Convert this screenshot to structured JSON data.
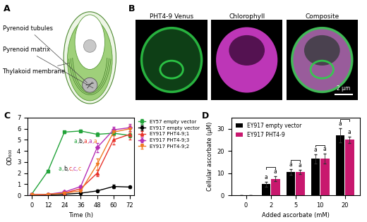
{
  "panel_labels": [
    "A",
    "B",
    "C",
    "D"
  ],
  "diagram": {
    "labels": [
      "Pyrenoid tubules",
      "Pyrenoid matrix",
      "Thylakoid membrane"
    ]
  },
  "images": {
    "titles": [
      "PHT4-9 Venus",
      "Chlorophyll",
      "Composite"
    ],
    "scale_bar": "2 µm"
  },
  "chart_data": [
    {
      "type": "line",
      "x": [
        0,
        12,
        24,
        36,
        48,
        60,
        72
      ],
      "xlim": [
        -3,
        75
      ],
      "xticks": [
        0,
        12,
        24,
        36,
        48,
        60,
        72
      ],
      "ylim": [
        0,
        7
      ],
      "yticks": [
        0,
        1,
        2,
        3,
        4,
        5,
        6,
        7
      ],
      "xlabel": "Time (h)",
      "ylabel": "OD₆₀₀",
      "legend": "upper left",
      "series": [
        {
          "name": "EY57 empty vector",
          "color": "#22a33a",
          "marker": "s",
          "values": [
            0.1,
            2.2,
            5.7,
            5.8,
            5.5,
            5.6,
            5.4
          ],
          "errors": [
            0.02,
            0.1,
            0.1,
            0.1,
            0.15,
            0.15,
            0.2
          ]
        },
        {
          "name": "EY917 empty vector",
          "color": "#000000",
          "marker": "o",
          "values": [
            0.05,
            0.05,
            0.1,
            0.2,
            0.4,
            0.8,
            0.75
          ],
          "errors": [
            0.01,
            0.02,
            0.02,
            0.05,
            0.1,
            0.15,
            0.1
          ]
        },
        {
          "name": "EY917 PHT4-9;1",
          "color": "#e8332b",
          "marker": "^",
          "values": [
            0.05,
            0.1,
            0.2,
            0.6,
            2.0,
            5.0,
            5.5
          ],
          "errors": [
            0.01,
            0.02,
            0.05,
            0.1,
            0.3,
            0.4,
            0.5
          ]
        },
        {
          "name": "EY917 PHT4-9;3",
          "color": "#b62fb5",
          "marker": "D",
          "values": [
            0.05,
            0.1,
            0.3,
            0.8,
            4.3,
            5.9,
            6.1
          ],
          "errors": [
            0.01,
            0.02,
            0.05,
            0.1,
            0.4,
            0.3,
            0.3
          ]
        },
        {
          "name": "EY917 PHT4-9;2",
          "color": "#f07a22",
          "marker": "v",
          "values": [
            0.05,
            0.1,
            0.2,
            0.4,
            2.8,
            5.7,
            6.0
          ],
          "errors": [
            0.01,
            0.02,
            0.05,
            0.1,
            0.5,
            0.3,
            0.3
          ]
        }
      ],
      "annotations": [
        {
          "text": "a,b,c,c,c",
          "x": 36,
          "y": 2.4,
          "colors": [
            "#22a33a",
            "#000000",
            "#e8332b",
            "#b62fb5",
            "#f07a22"
          ]
        },
        {
          "text": "a,b,a,a,a",
          "x": 48,
          "y": 4.9,
          "colors": [
            "#22a33a",
            "#000000",
            "#e8332b",
            "#b62fb5",
            "#f07a22"
          ]
        }
      ]
    },
    {
      "type": "bar",
      "categories": [
        "0",
        "2",
        "5",
        "10",
        "20"
      ],
      "xlabel": "Added ascorbate (mM)",
      "ylabel": "Cellular ascorbate (µM)",
      "ylim": [
        0,
        35
      ],
      "yticks": [
        0,
        10,
        20,
        30
      ],
      "legend": "upper left",
      "series": [
        {
          "name": "EY917 empty vector",
          "color": "#000000",
          "values": [
            0,
            5,
            10.5,
            16.5,
            27
          ],
          "errors": [
            0,
            1,
            1.3,
            2,
            3.2
          ],
          "letters": [
            null,
            "a",
            "a",
            "a",
            "a"
          ]
        },
        {
          "name": "EY917 PHT4-9",
          "color": "#c8186e",
          "values": [
            0,
            7.5,
            10.5,
            16.5,
            25
          ],
          "errors": [
            0,
            1.2,
            1,
            2.2,
            1.5
          ],
          "letters": [
            null,
            "a",
            "a",
            "a",
            "a"
          ]
        }
      ]
    }
  ]
}
